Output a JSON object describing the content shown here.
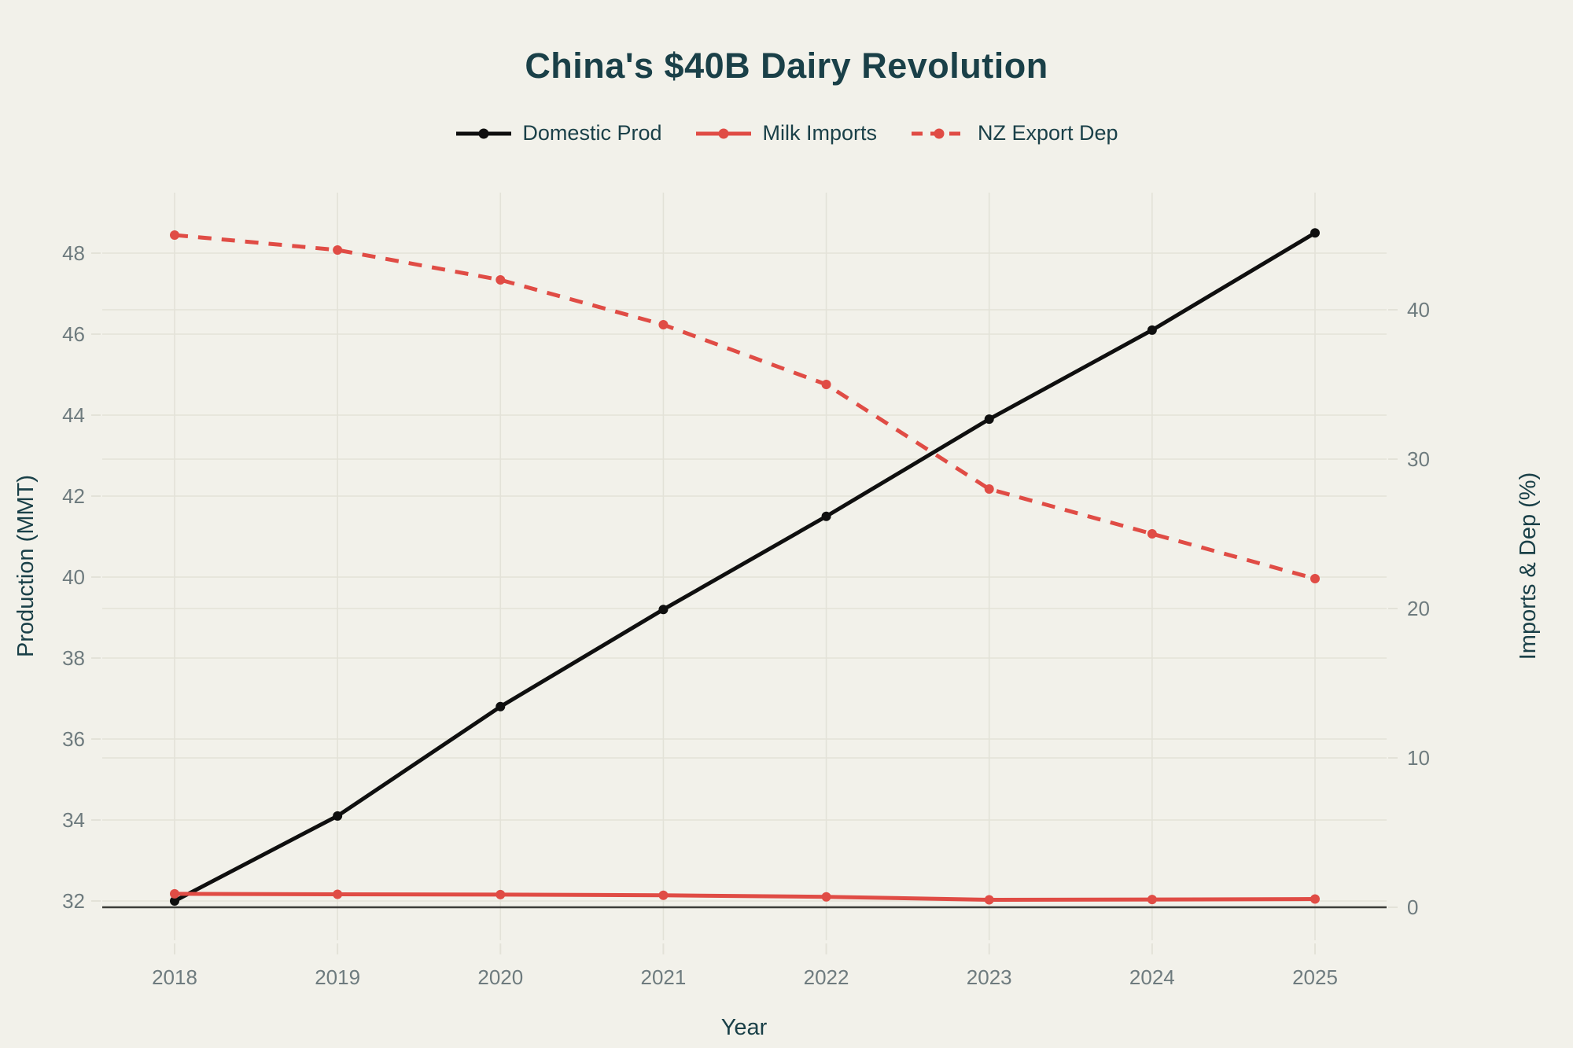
{
  "title": "China's $40B Dairy Revolution",
  "colors": {
    "background": "#F2F1EA",
    "heading_teal": "#1A4048",
    "tick_gray": "#6E7B7E",
    "gridline": "#E3E2D8",
    "zero_line": "#3D3D3A",
    "series_black": "#0F0F0F",
    "series_red": "#E04C45"
  },
  "legend": {
    "position": "top-center"
  },
  "chart_data": {
    "type": "line",
    "title": "China's $40B Dairy Revolution",
    "x_axis": {
      "title": "Year",
      "ticks": [
        2018,
        2019,
        2020,
        2021,
        2022,
        2023,
        2024,
        2025
      ]
    },
    "left_axis": {
      "title": "Production (MMT)",
      "ticks": [
        32,
        34,
        36,
        38,
        40,
        42,
        44,
        46,
        48
      ],
      "range": [
        31.0,
        49.5
      ]
    },
    "right_axis": {
      "title": "Imports & Dep (%)",
      "ticks": [
        0,
        10,
        20,
        30,
        40
      ],
      "range": [
        -2.2,
        47.8
      ],
      "zero_line": true
    },
    "x": [
      2018,
      2019,
      2020,
      2021,
      2022,
      2023,
      2024,
      2025
    ],
    "series": [
      {
        "name": "Domestic Prod",
        "axis": "left",
        "style": "solid",
        "color": "#0F0F0F",
        "marker": "circle",
        "values": [
          32.0,
          34.1,
          36.8,
          39.2,
          41.5,
          43.9,
          46.1,
          48.5
        ]
      },
      {
        "name": "Milk Imports",
        "axis": "right",
        "style": "solid",
        "color": "#E04C45",
        "marker": "circle",
        "values": [
          0.9,
          0.87,
          0.85,
          0.8,
          0.7,
          0.5,
          0.52,
          0.55
        ]
      },
      {
        "name": "NZ Export Dep",
        "axis": "right",
        "style": "dashed",
        "color": "#E04C45",
        "marker": "circle",
        "values": [
          45,
          44,
          42,
          39,
          35,
          28,
          25,
          22
        ]
      }
    ],
    "grid": "on",
    "legend_entries": [
      "Domestic Prod",
      "Milk Imports",
      "NZ Export Dep"
    ]
  }
}
